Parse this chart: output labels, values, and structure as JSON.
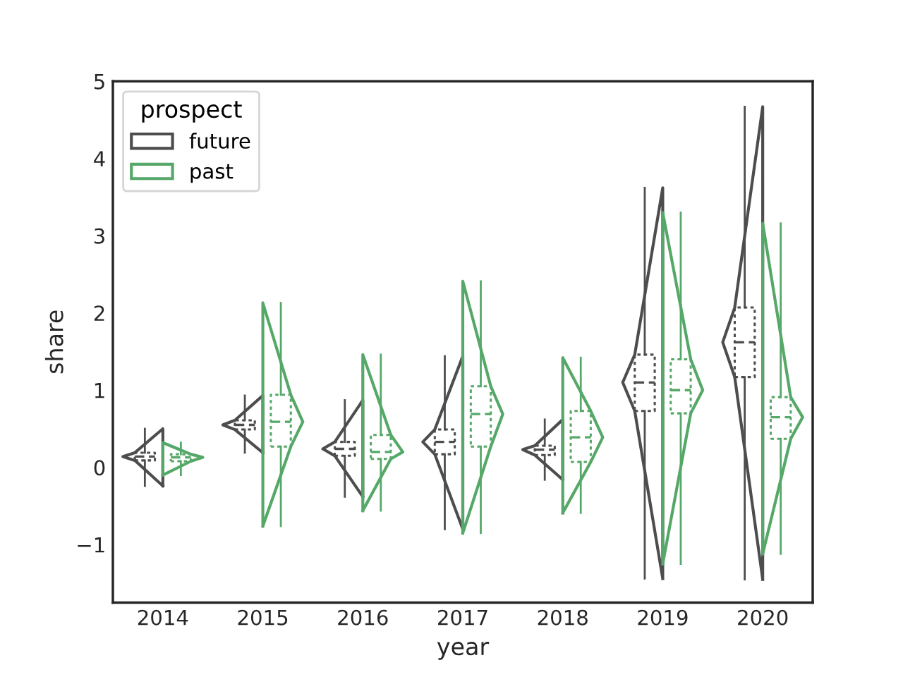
{
  "chart_data": {
    "type": "box",
    "xlabel": "year",
    "ylabel": "share",
    "legend_title": "prospect",
    "legend": "top left",
    "categories": [
      "2014",
      "2015",
      "2016",
      "2017",
      "2018",
      "2019",
      "2020"
    ],
    "ylim": [
      -1.75,
      5
    ],
    "yticks": [
      {
        "value": -1,
        "label": "−1"
      },
      0,
      1,
      2,
      3,
      4,
      5
    ],
    "series": [
      {
        "name": "future",
        "color": "#4d4d4d",
        "boxes": [
          {
            "low": -0.24,
            "q1": 0.09,
            "median": 0.14,
            "q3": 0.19,
            "high": 0.5
          },
          {
            "low": 0.19,
            "q1": 0.49,
            "median": 0.55,
            "q3": 0.61,
            "high": 0.93
          },
          {
            "low": -0.38,
            "q1": 0.15,
            "median": 0.24,
            "q3": 0.33,
            "high": 0.87
          },
          {
            "low": -0.8,
            "q1": 0.17,
            "median": 0.33,
            "q3": 0.49,
            "high": 1.44
          },
          {
            "low": -0.16,
            "q1": 0.16,
            "median": 0.23,
            "q3": 0.28,
            "high": 0.62
          },
          {
            "low": -1.44,
            "q1": 0.73,
            "median": 1.1,
            "q3": 1.46,
            "high": 3.62
          },
          {
            "low": -1.45,
            "q1": 1.17,
            "median": 1.62,
            "q3": 2.07,
            "high": 4.67
          }
        ]
      },
      {
        "name": "past",
        "color": "#55a868",
        "boxes": [
          {
            "low": -0.1,
            "q1": 0.08,
            "median": 0.13,
            "q3": 0.17,
            "high": 0.32
          },
          {
            "low": -0.76,
            "q1": 0.27,
            "median": 0.59,
            "q3": 0.94,
            "high": 2.13
          },
          {
            "low": -0.56,
            "q1": 0.11,
            "median": 0.2,
            "q3": 0.42,
            "high": 1.46
          },
          {
            "low": -0.85,
            "q1": 0.27,
            "median": 0.69,
            "q3": 1.05,
            "high": 2.41
          },
          {
            "low": -0.59,
            "q1": 0.07,
            "median": 0.39,
            "q3": 0.73,
            "high": 1.42
          },
          {
            "low": -1.25,
            "q1": 0.7,
            "median": 1.0,
            "q3": 1.4,
            "high": 3.3
          },
          {
            "low": -1.12,
            "q1": 0.37,
            "median": 0.65,
            "q3": 0.91,
            "high": 3.16
          }
        ]
      }
    ]
  }
}
